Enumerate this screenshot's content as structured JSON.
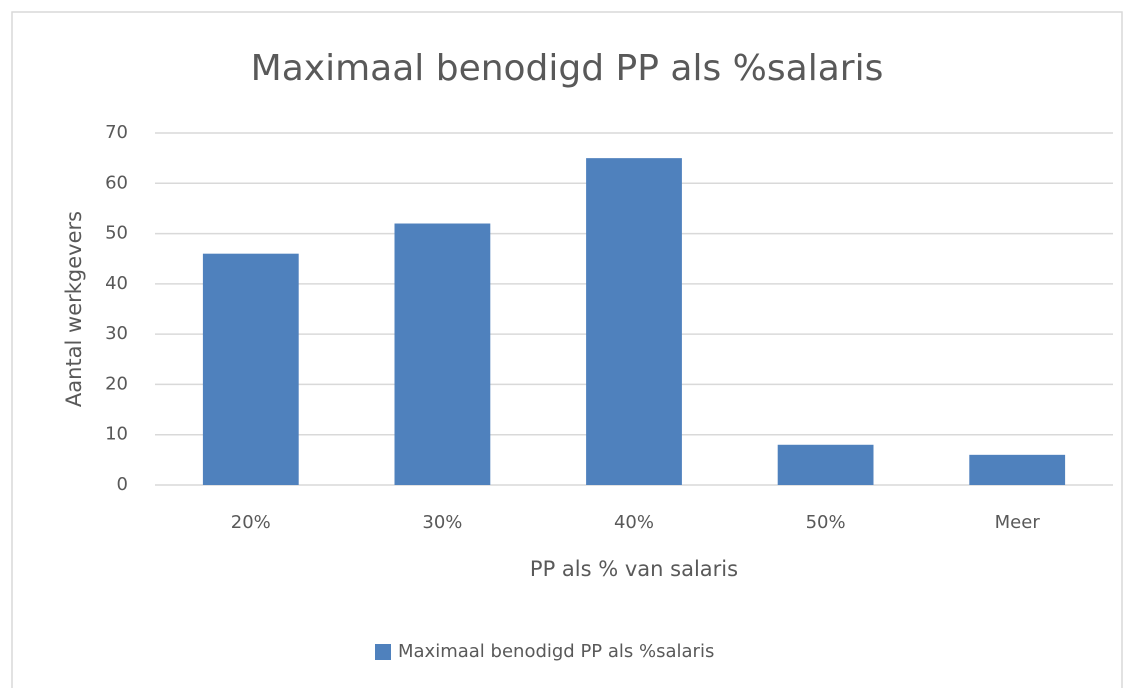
{
  "chart_data": {
    "type": "bar",
    "title": "Maximaal benodigd PP als %salaris",
    "x_label": "PP als % van salaris",
    "y_label": "Aantal werkgevers",
    "categories": [
      "20%",
      "30%",
      "40%",
      "50%",
      "Meer"
    ],
    "series": [
      {
        "name": "Maximaal benodigd PP als %salaris",
        "color": "#4f81bd",
        "values": [
          46,
          52,
          65,
          8,
          6
        ]
      }
    ],
    "ylim": [
      0,
      70
    ],
    "yticks": [
      0,
      10,
      20,
      30,
      40,
      50,
      60,
      70
    ],
    "grid": true,
    "legend": "bottom"
  }
}
